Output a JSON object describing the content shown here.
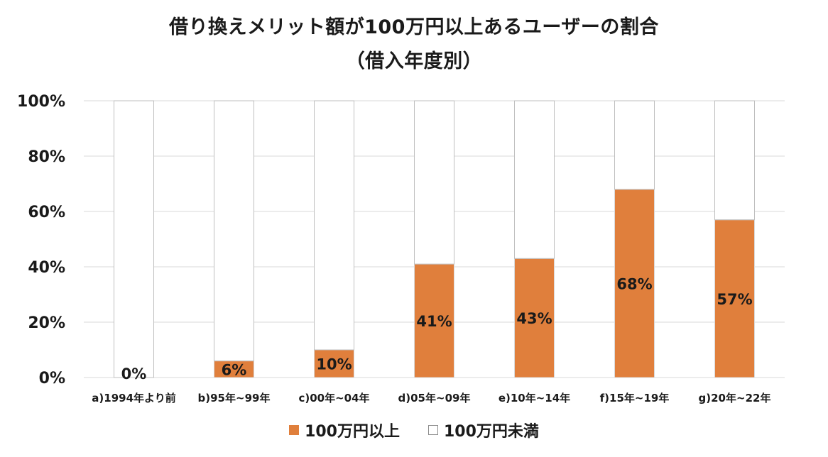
{
  "chart_data": {
    "type": "bar",
    "stacked": true,
    "title": "借り換えメリット額が100万円以上あるユーザーの割合",
    "subtitle": "（借入年度別）",
    "categories": [
      "a)1994年より前",
      "b)95年~99年",
      "c)00年~04年",
      "d)05年~09年",
      "e)10年~14年",
      "f)15年~19年",
      "g)20年~22年"
    ],
    "series": [
      {
        "name": "100万円以上",
        "color": "#e07f3c",
        "values": [
          0,
          6,
          10,
          41,
          43,
          68,
          57
        ],
        "labels": [
          "0%",
          "6%",
          "10%",
          "41%",
          "43%",
          "68%",
          "57%"
        ]
      },
      {
        "name": "100万円未満",
        "color": "#ffffff",
        "values": [
          100,
          94,
          90,
          59,
          57,
          32,
          43
        ]
      }
    ],
    "yticks": [
      "0%",
      "20%",
      "40%",
      "60%",
      "80%",
      "100%"
    ],
    "ylim": [
      0,
      100
    ],
    "grid": true,
    "legend_position": "bottom"
  }
}
